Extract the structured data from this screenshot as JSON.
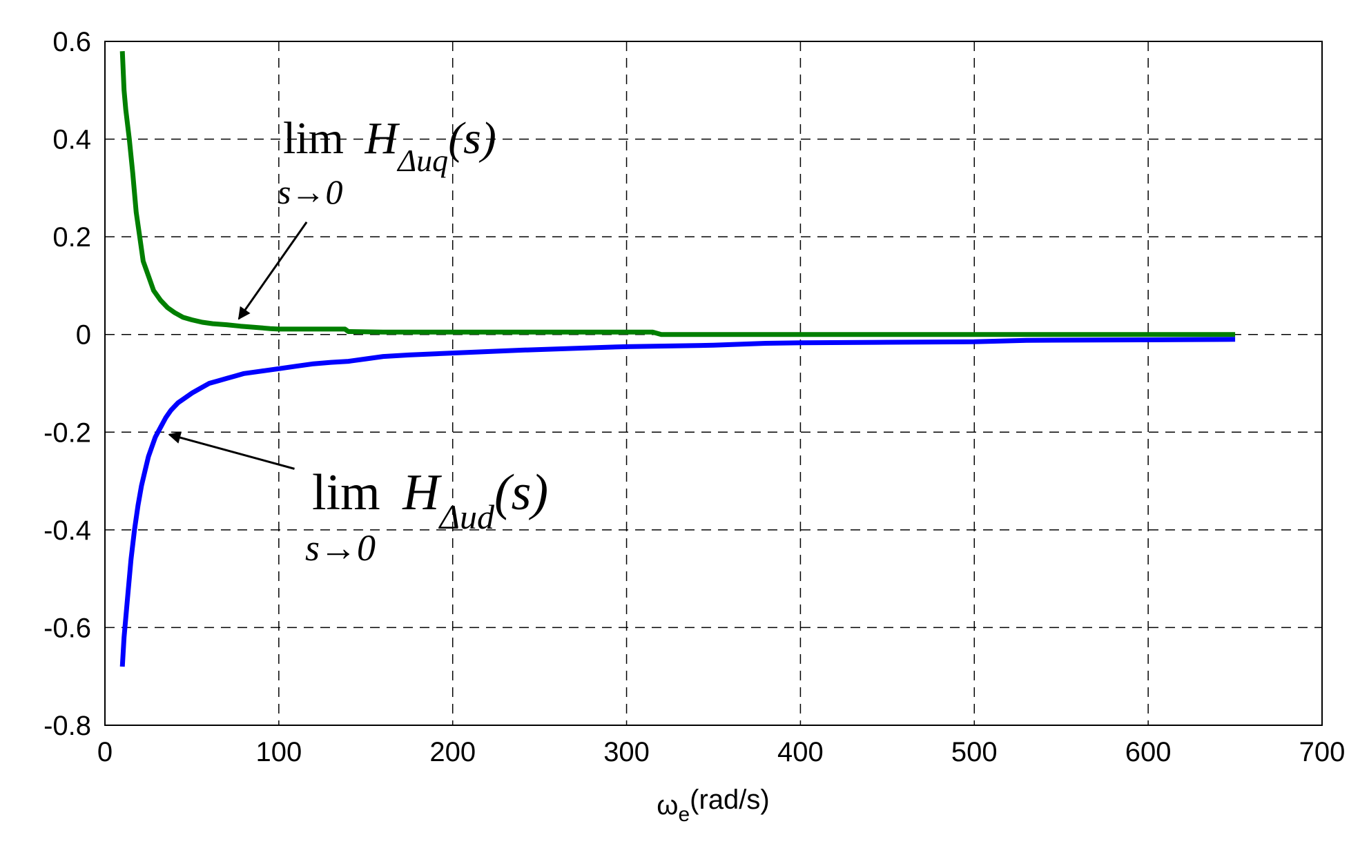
{
  "chart_data": {
    "type": "line",
    "title": "",
    "xlabel_symbol": "ω",
    "xlabel_subscript": "e",
    "xlabel_unit": "(rad/s)",
    "ylabel": "",
    "xlim": [
      0,
      700
    ],
    "ylim": [
      -0.8,
      0.6
    ],
    "xticks": [
      0,
      100,
      200,
      300,
      400,
      500,
      600,
      700
    ],
    "yticks": [
      0.6,
      0.4,
      0.2,
      0,
      -0.2,
      -0.4,
      -0.6,
      -0.8
    ],
    "xtick_labels": [
      "0",
      "100",
      "200",
      "300",
      "400",
      "500",
      "600",
      "700"
    ],
    "ytick_labels": [
      "0.6",
      "0.4",
      "0.2",
      "0",
      "-0.2",
      "-0.4",
      "-0.6",
      "-0.8"
    ],
    "grid": true,
    "series": [
      {
        "name": "H_Δuq",
        "color": "#007f00",
        "x": [
          10,
          11,
          12,
          14,
          16,
          18,
          20,
          22,
          25,
          28,
          32,
          36,
          40,
          45,
          50,
          56,
          62,
          70,
          78,
          85,
          95,
          100,
          120,
          138,
          140,
          160,
          180,
          200,
          240,
          280,
          315,
          320,
          400,
          500,
          600,
          650
        ],
        "y": [
          0.58,
          0.5,
          0.46,
          0.4,
          0.33,
          0.25,
          0.2,
          0.15,
          0.12,
          0.09,
          0.07,
          0.055,
          0.045,
          0.035,
          0.03,
          0.025,
          0.022,
          0.02,
          0.017,
          0.015,
          0.012,
          0.011,
          0.011,
          0.011,
          0.006,
          0.005,
          0.005,
          0.005,
          0.005,
          0.005,
          0.005,
          0.0,
          0.0,
          0.0,
          0.0,
          0.0
        ]
      },
      {
        "name": "H_Δud",
        "color": "#0000ff",
        "x": [
          10,
          11,
          13,
          15,
          17,
          19,
          21,
          23,
          25,
          27,
          29,
          32,
          35,
          38,
          42,
          46,
          50,
          55,
          60,
          65,
          70,
          75,
          80,
          90,
          100,
          110,
          120,
          130,
          140,
          150,
          160,
          175,
          200,
          240,
          290,
          300,
          350,
          380,
          400,
          450,
          500,
          530,
          600,
          650
        ],
        "y": [
          -0.68,
          -0.62,
          -0.54,
          -0.46,
          -0.4,
          -0.35,
          -0.31,
          -0.28,
          -0.25,
          -0.23,
          -0.21,
          -0.19,
          -0.17,
          -0.155,
          -0.14,
          -0.13,
          -0.12,
          -0.11,
          -0.1,
          -0.095,
          -0.09,
          -0.085,
          -0.08,
          -0.075,
          -0.07,
          -0.065,
          -0.06,
          -0.057,
          -0.055,
          -0.05,
          -0.045,
          -0.042,
          -0.038,
          -0.032,
          -0.026,
          -0.025,
          -0.022,
          -0.018,
          -0.017,
          -0.016,
          -0.015,
          -0.012,
          -0.011,
          -0.01
        ]
      }
    ],
    "annotations": [
      {
        "name": "uq",
        "lim": "lim",
        "h": "H",
        "sub": "Δuq",
        "arg": "(s)",
        "under": "s→0",
        "arrow_from": [
          116,
          0.23
        ],
        "arrow_to": [
          77,
          0.032
        ]
      },
      {
        "name": "ud",
        "lim": "lim",
        "h": "H",
        "sub": "Δud",
        "arg": "(s)",
        "under": "s→0",
        "arrow_from": [
          109,
          -0.275
        ],
        "arrow_to": [
          37,
          -0.205
        ]
      }
    ]
  }
}
